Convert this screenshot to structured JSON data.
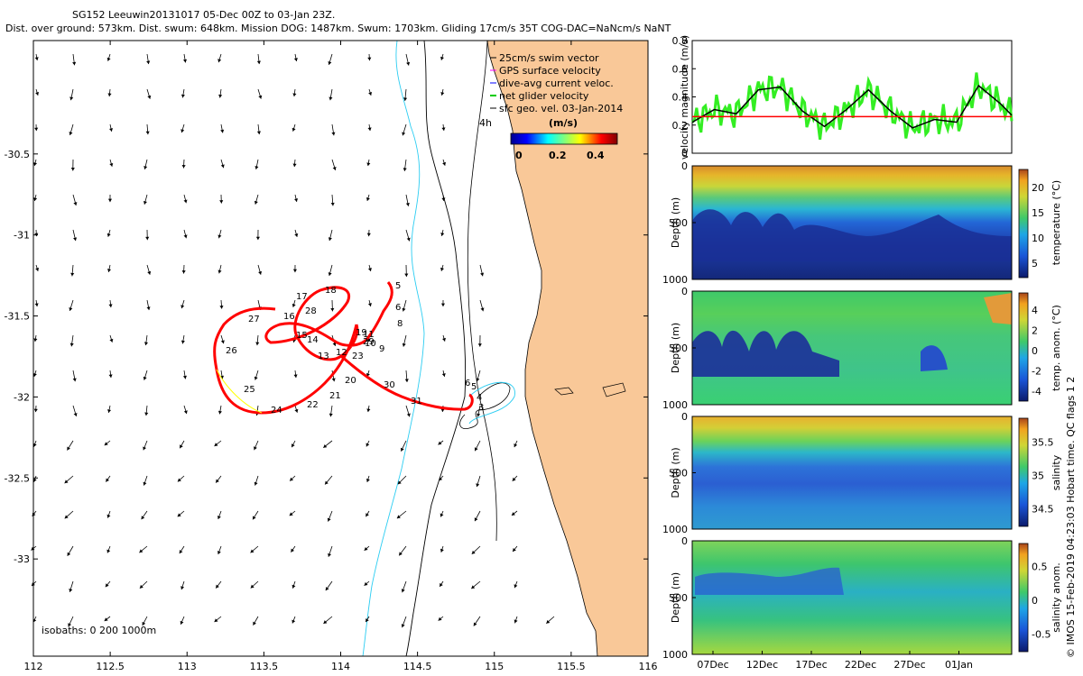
{
  "header": {
    "line1": "SG152 Leeuwin20131017 05-Dec 00Z to 03-Jan 23Z.",
    "line2": "Dist. over ground: 573km. Dist. swum: 648km. Mission DOG: 1487km. Swum: 1703km. Gliding 17cm/s 35T COG-DAC=NaNcm/s NaNT"
  },
  "map": {
    "x_ticks": [
      "112",
      "112.5",
      "113",
      "113.5",
      "114",
      "114.5",
      "115",
      "115.5",
      "116"
    ],
    "y_ticks": [
      "-30.5",
      "-31",
      "-31.5",
      "-32",
      "-32.5",
      "-33"
    ],
    "xlim": [
      112,
      116
    ],
    "ylim": [
      -33.6,
      -29.8
    ],
    "legend": [
      {
        "label": "25cm/s swim vector",
        "color": "#000000"
      },
      {
        "label": "GPS surface velocity",
        "color": "#ff00ff"
      },
      {
        "label": "dive-avg current veloc.",
        "color": "#0000ff"
      },
      {
        "label": "net glider velocity",
        "color": "#00cc00"
      },
      {
        "label": "sfc geo. vel. 03-Jan-2014",
        "color": "#000000"
      }
    ],
    "marker_4h": "4h",
    "colorbar": {
      "unit": "(m/s)",
      "ticks": [
        "0",
        "0.2",
        "0.4"
      ]
    },
    "isobaths_label": "isobaths: 0   200  1000m",
    "day_labels": [
      "5",
      "6",
      "8",
      "3",
      "4",
      "5",
      "6",
      "9",
      "10",
      "11",
      "12",
      "13",
      "14",
      "15",
      "16",
      "17",
      "18",
      "19",
      "20",
      "21",
      "22",
      "23",
      "24",
      "25",
      "26",
      "27",
      "28",
      "29",
      "30",
      "31"
    ],
    "land_color": "#f9c898",
    "track_color": "#ff0000"
  },
  "chart_data": [
    {
      "type": "line",
      "title": "",
      "ylabel": "velocity magnitude (m/s)",
      "ylim": [
        0,
        0.8
      ],
      "y_ticks": [
        "0",
        "0.2",
        "0.4",
        "0.6",
        "0.8"
      ],
      "series": [
        {
          "values_x_days": [
            0,
            2,
            4,
            6,
            8,
            10,
            12,
            14,
            16,
            18,
            20,
            22,
            24,
            26,
            28,
            29
          ],
          "values": [
            0.22,
            0.31,
            0.28,
            0.45,
            0.47,
            0.3,
            0.19,
            0.31,
            0.45,
            0.3,
            0.18,
            0.24,
            0.22,
            0.48,
            0.35,
            0.27
          ]
        },
        {
          "values_x_days": [
            0,
            29
          ],
          "values": [
            0.26,
            0.26
          ]
        }
      ]
    },
    {
      "type": "heatmap",
      "ylabel": "Depth (m)",
      "y_ticks": [
        "0",
        "500",
        "1000"
      ],
      "colorbar_label": "temperature (°C)",
      "colorbar_ticks": [
        "20",
        "15",
        "10",
        "5"
      ]
    },
    {
      "type": "heatmap",
      "ylabel": "Depth (m)",
      "y_ticks": [
        "0",
        "500",
        "1000"
      ],
      "colorbar_label": "temp. anom. (°C)",
      "colorbar_ticks": [
        "4",
        "2",
        "0",
        "-2",
        "-4"
      ]
    },
    {
      "type": "heatmap",
      "ylabel": "Depth (m)",
      "y_ticks": [
        "0",
        "500",
        "1000"
      ],
      "colorbar_label": "salinity",
      "colorbar_ticks": [
        "35.5",
        "35",
        "34.5"
      ]
    },
    {
      "type": "heatmap",
      "ylabel": "Depth (m)",
      "y_ticks": [
        "0",
        "500",
        "1000"
      ],
      "colorbar_label": "salinity anom.",
      "colorbar_ticks": [
        "0.5",
        "0",
        "-0.5"
      ],
      "x_ticks": [
        "07Dec",
        "12Dec",
        "17Dec",
        "22Dec",
        "27Dec",
        "01Jan"
      ]
    }
  ],
  "side_note": "© IMOS 15-Feb-2019 04:23:03 Hobart time. QC flags 1  2"
}
